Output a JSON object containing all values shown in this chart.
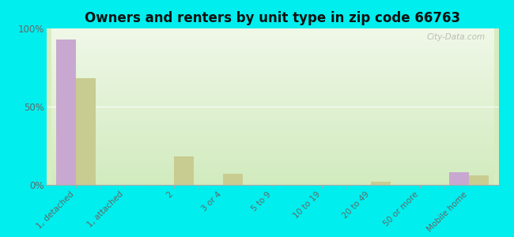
{
  "title": "Owners and renters by unit type in zip code 66763",
  "categories": [
    "1, detached",
    "1, attached",
    "2",
    "3 or 4",
    "5 to 9",
    "10 to 19",
    "20 to 49",
    "50 or more",
    "Mobile home"
  ],
  "owner_values": [
    93,
    0,
    0,
    0,
    0,
    0,
    0,
    0,
    8
  ],
  "renter_values": [
    68,
    0,
    18,
    7,
    0,
    0,
    2,
    0,
    6
  ],
  "owner_color": "#c8a8d0",
  "renter_color": "#c8cc90",
  "bg_color": "#00eeee",
  "ylim": [
    0,
    100
  ],
  "yticks": [
    0,
    50,
    100
  ],
  "ytick_labels": [
    "0%",
    "50%",
    "100%"
  ],
  "bar_width": 0.4,
  "watermark": "City-Data.com",
  "plot_bg_gradient_top": "#f0f8e8",
  "plot_bg_gradient_bottom": "#d8ecc0"
}
